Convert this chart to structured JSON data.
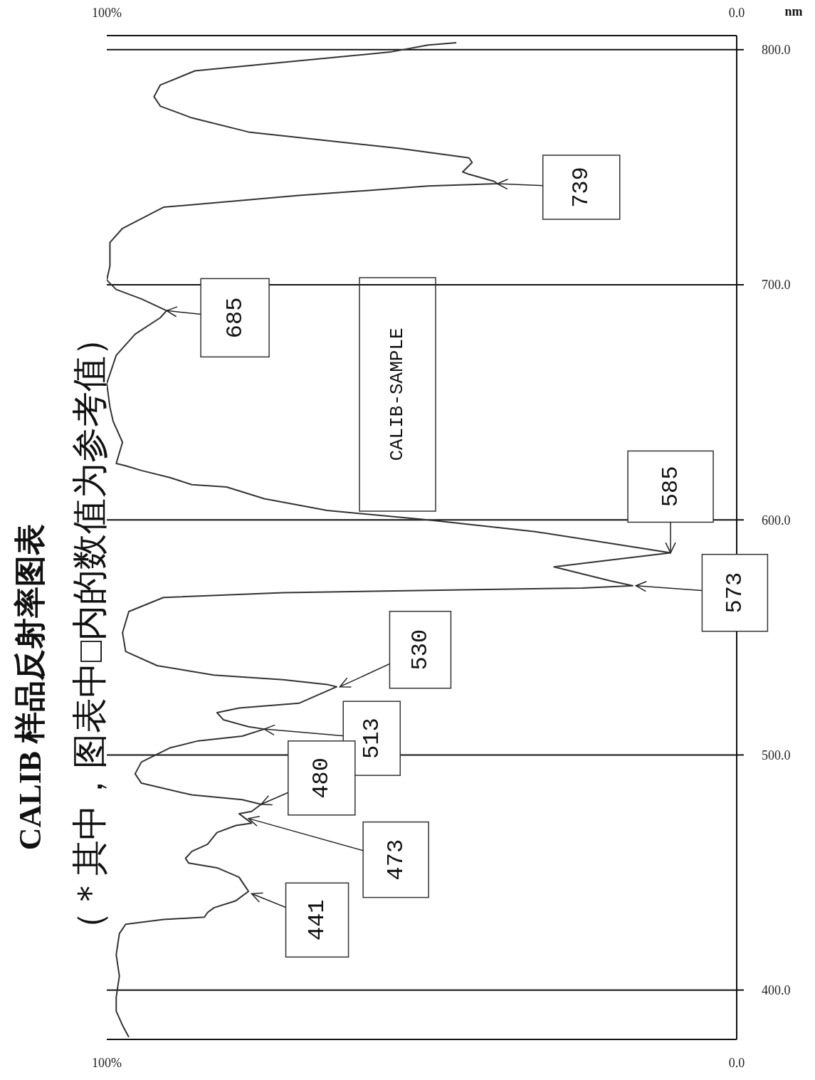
{
  "chart_data": {
    "type": "line",
    "title": "CALIB 样品反射率图表",
    "subtitle": "（＊其中，图表中□内的数值为参考值）",
    "ylabel": "nm",
    "xlim": [
      100,
      0
    ],
    "xticks": [
      {
        "value": 100,
        "label": "100%"
      },
      {
        "value": 0,
        "label": "0.0"
      }
    ],
    "x2lim": [
      100,
      0
    ],
    "x2ticks": [
      {
        "value": 100,
        "label": "100%"
      },
      {
        "value": 0,
        "label": "0.0"
      }
    ],
    "ylim": [
      379,
      806
    ],
    "yticks": [
      {
        "value": 400,
        "label": "400.0"
      },
      {
        "value": 500,
        "label": "500.0"
      },
      {
        "value": 600,
        "label": "600.0"
      },
      {
        "value": 700,
        "label": "700.0"
      },
      {
        "value": 800,
        "label": "800.0"
      }
    ],
    "grid": "y",
    "marker": "none",
    "line_style": "solid",
    "series": [
      {
        "color": "#333333",
        "x": [
          96.5,
          97.5,
          98.5,
          98.5,
          98,
          98.5,
          98,
          97,
          91,
          84.5,
          84,
          83,
          79.5,
          77.5,
          78,
          79,
          82.5,
          87,
          87.5,
          86.5,
          84,
          82.5,
          79.5,
          77,
          78,
          79,
          77,
          75.5,
          78.5,
          86.5,
          94.5,
          95.5,
          94.5,
          90,
          85.5,
          78.5,
          75,
          77.5,
          81.5,
          82.5,
          79,
          69.5,
          63.5,
          65,
          72,
          83,
          92,
          97,
          97.5,
          96.5,
          91,
          72,
          49,
          24.5,
          16.5,
          20,
          29,
          23,
          10.5,
          20,
          32,
          49,
          65,
          75,
          81,
          86.5,
          90,
          94.5,
          97,
          98.5,
          97.5,
          99,
          99.5,
          100,
          98.5,
          95.5,
          91.5,
          90.5,
          94.5,
          98.5,
          100,
          99.5,
          99.5,
          97.5,
          91,
          69.5,
          49,
          38,
          38.5,
          42.5,
          43.5,
          42,
          42.5,
          53.5,
          77.5,
          86.5,
          91.5,
          92.5,
          91.5,
          86,
          70.5,
          55,
          49,
          44.5
        ],
        "values": [
          380,
          385,
          391,
          397,
          406,
          415,
          424,
          428,
          430,
          431,
          433,
          435,
          438,
          442,
          444,
          448,
          452,
          454,
          456,
          459,
          462,
          467,
          470,
          471,
          473,
          475,
          476,
          479,
          481,
          483,
          488,
          492,
          497,
          503,
          506,
          508,
          511,
          512,
          515,
          518,
          520,
          522,
          529,
          530,
          532,
          534,
          538,
          544,
          552,
          561,
          567,
          569,
          570,
          571,
          572,
          574,
          580,
          582,
          586,
          590,
          595,
          600,
          604,
          609,
          614,
          615,
          618,
          621,
          623,
          624,
          633,
          642,
          648,
          658,
          670,
          679,
          686,
          689,
          694,
          698,
          702,
          708,
          718,
          724,
          733,
          738,
          742,
          743,
          744,
          747,
          748,
          752,
          754,
          758,
          765,
          771,
          776,
          780,
          785,
          791,
          795,
          799,
          802,
          803
        ]
      }
    ],
    "annotations": [
      {
        "text": "739",
        "x": 38,
        "y": 743
      },
      {
        "text": "685",
        "x": 90.5,
        "y": 689
      },
      {
        "text": "585",
        "x": 10.5,
        "y": 586
      },
      {
        "text": "573",
        "x": 16,
        "y": 572
      },
      {
        "text": "530",
        "x": 63,
        "y": 529
      },
      {
        "text": "513",
        "x": 75,
        "y": 511
      },
      {
        "text": "480",
        "x": 75.5,
        "y": 479
      },
      {
        "text": "473",
        "x": 77.5,
        "y": 473
      },
      {
        "text": "441",
        "x": 77,
        "y": 441
      },
      "CALIB-SAMPLE"
    ]
  }
}
